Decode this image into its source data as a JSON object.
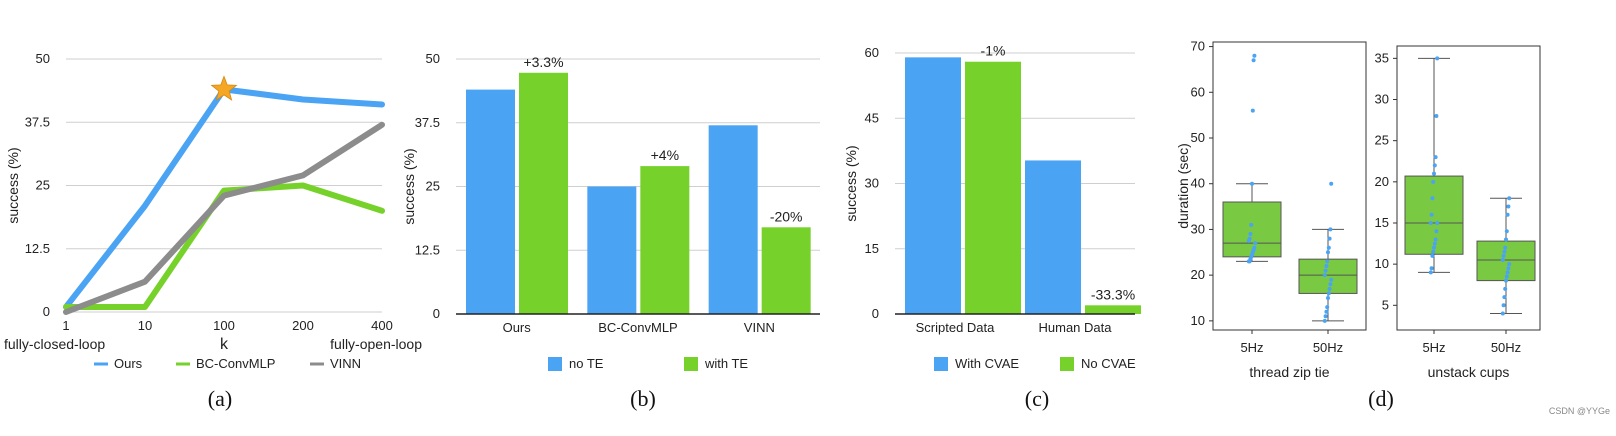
{
  "watermark": "CSDN @YYGe",
  "chart_data": [
    {
      "id": "a",
      "type": "line",
      "caption": "(a)",
      "title": "",
      "xlabel": "k",
      "ylabel": "success (%)",
      "x": [
        "1",
        "10",
        "100",
        "200",
        "400"
      ],
      "x_end_labels": [
        "fully-closed-loop",
        "fully-open-loop"
      ],
      "ylim": [
        0,
        50
      ],
      "yticks": [
        "0",
        "12.5",
        "25",
        "37.5",
        "50"
      ],
      "grid": true,
      "legend": "bottom",
      "series": [
        {
          "name": "Ours",
          "color": "#4aa3f3",
          "values": [
            1,
            21,
            44,
            42,
            41
          ]
        },
        {
          "name": "BC-ConvMLP",
          "color": "#76d22b",
          "values": [
            1,
            1,
            24,
            25,
            20
          ]
        },
        {
          "name": "VINN",
          "color": "#8c8c8c",
          "values": [
            0,
            6,
            23,
            27,
            37
          ]
        }
      ],
      "marker": {
        "name": "best",
        "series": "Ours",
        "x": "100",
        "value": 44,
        "color": "#f5a623"
      }
    },
    {
      "id": "b",
      "type": "bar",
      "caption": "(b)",
      "title": "",
      "xlabel": "",
      "ylabel": "success (%)",
      "categories": [
        "Ours",
        "BC-ConvMLP",
        "VINN"
      ],
      "ylim": [
        0,
        50
      ],
      "yticks": [
        "0",
        "12.5",
        "25",
        "37.5",
        "50"
      ],
      "grid": true,
      "legend": "bottom",
      "series": [
        {
          "name": "no TE",
          "color": "#4aa3f3",
          "values": [
            44,
            25,
            37
          ]
        },
        {
          "name": "with TE",
          "color": "#76d22b",
          "values": [
            47.3,
            29,
            17
          ]
        }
      ],
      "annotations": [
        "+3.3%",
        "+4%",
        "-20%"
      ]
    },
    {
      "id": "c",
      "type": "bar",
      "caption": "(c)",
      "title": "",
      "xlabel": "",
      "ylabel": "success (%)",
      "categories": [
        "Scripted Data",
        "Human Data"
      ],
      "ylim": [
        0,
        60
      ],
      "yticks": [
        "0",
        "15",
        "30",
        "45",
        "60"
      ],
      "grid": true,
      "legend": "bottom",
      "series": [
        {
          "name": "With CVAE",
          "color": "#4aa3f3",
          "values": [
            59,
            35.3
          ]
        },
        {
          "name": "No CVAE",
          "color": "#76d22b",
          "values": [
            58,
            2
          ]
        }
      ],
      "annotations": [
        "-1%",
        "-33.3%"
      ]
    },
    {
      "id": "d1",
      "type": "box",
      "caption": "(d)",
      "title": "",
      "xlabel": "thread zip tie",
      "ylabel": "duration (sec)",
      "categories": [
        "5Hz",
        "50Hz"
      ],
      "ylim": [
        8,
        71
      ],
      "yticks": [
        "10",
        "20",
        "30",
        "40",
        "50",
        "60",
        "70"
      ],
      "boxes": [
        {
          "name": "5Hz",
          "whisker_low": 23,
          "q1": 24,
          "median": 27,
          "q3": 36,
          "whisker_high": 40,
          "points": [
            23,
            23,
            23.5,
            24,
            24.5,
            25,
            25.5,
            26,
            27,
            27.5,
            28,
            29,
            31,
            40,
            56,
            67,
            68
          ]
        },
        {
          "name": "50Hz",
          "whisker_low": 10,
          "q1": 16,
          "median": 20,
          "q3": 23.5,
          "whisker_high": 30,
          "points": [
            10,
            11,
            12,
            13,
            15,
            16,
            17,
            18,
            19,
            20,
            21,
            22,
            23,
            25,
            26,
            28,
            30,
            40
          ]
        }
      ],
      "box_color": "#7ac943",
      "point_color": "#4aa3f3"
    },
    {
      "id": "d2",
      "type": "box",
      "title": "",
      "xlabel": "unstack cups",
      "ylabel": "",
      "categories": [
        "5Hz",
        "50Hz"
      ],
      "ylim": [
        2,
        36.5
      ],
      "yticks": [
        "5",
        "10",
        "15",
        "20",
        "25",
        "30",
        "35"
      ],
      "boxes": [
        {
          "name": "5Hz",
          "whisker_low": 9,
          "q1": 11.2,
          "median": 15,
          "q3": 20.7,
          "whisker_high": 35,
          "points": [
            9,
            9.5,
            11,
            11.5,
            12,
            12.5,
            13,
            14,
            15,
            15,
            16,
            18,
            20,
            21,
            22,
            23,
            28,
            35
          ]
        },
        {
          "name": "50Hz",
          "whisker_low": 4,
          "q1": 8,
          "median": 10.5,
          "q3": 12.8,
          "whisker_high": 18,
          "points": [
            4,
            5,
            6,
            7,
            8,
            8.5,
            9,
            9.5,
            10,
            10.5,
            11,
            11.5,
            12,
            13,
            14,
            16,
            17,
            18
          ]
        }
      ],
      "box_color": "#7ac943",
      "point_color": "#4aa3f3"
    }
  ]
}
